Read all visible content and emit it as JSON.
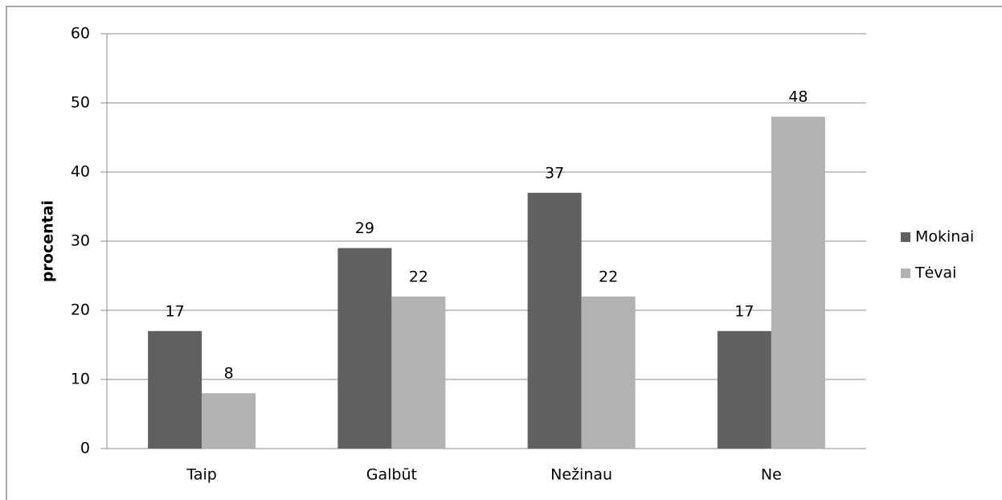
{
  "chart_data": {
    "type": "bar",
    "y_label": "procentai",
    "categories": [
      "Taip",
      "Galbūt",
      "Nežinau",
      "Ne"
    ],
    "series": [
      {
        "name": "Mokinai",
        "color": "#606060",
        "values": [
          17,
          29,
          37,
          17
        ]
      },
      {
        "name": "Tėvai",
        "color": "#b2b2b2",
        "values": [
          8,
          22,
          22,
          48
        ]
      }
    ],
    "ylim": [
      0,
      60
    ],
    "yticks": [
      0,
      10,
      20,
      30,
      40,
      50,
      60
    ],
    "grid": true,
    "legend": "right"
  }
}
